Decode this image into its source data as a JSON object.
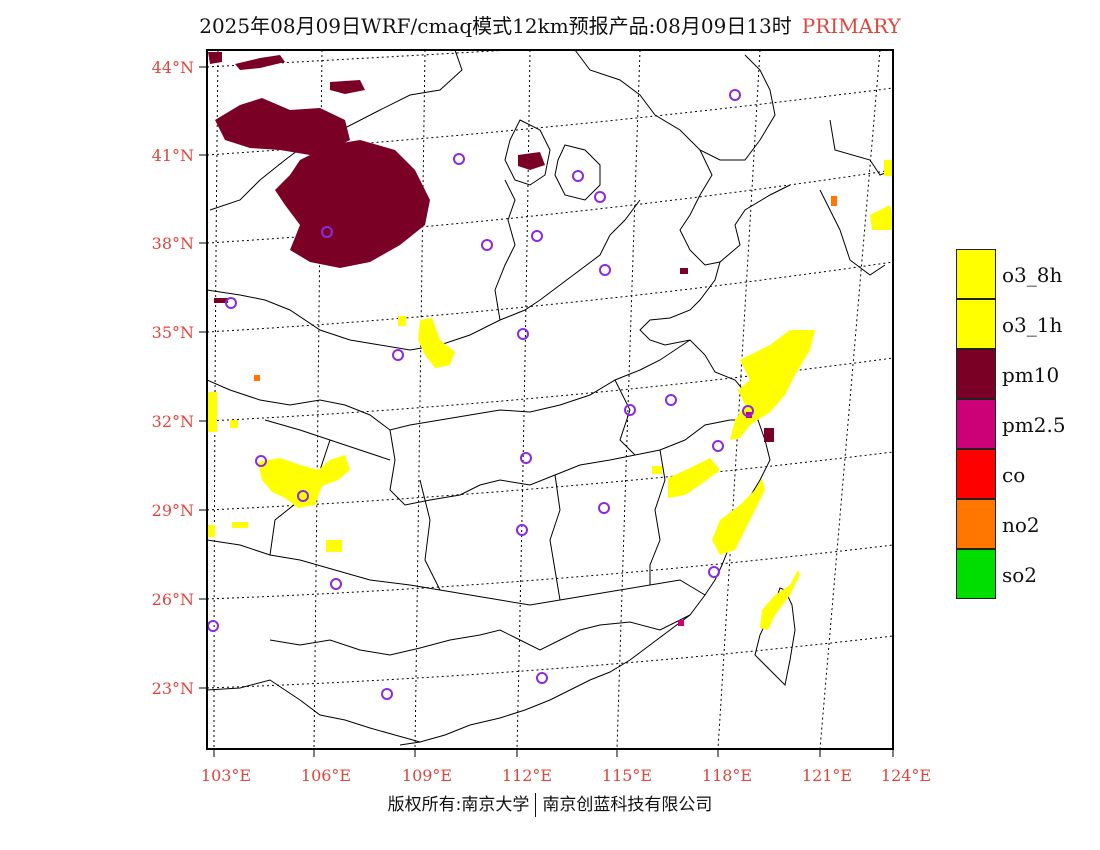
{
  "title": {
    "main": "2025年08月09日WRF/cmaq模式12km预报产品:08月09日13时",
    "tag": "PRIMARY"
  },
  "colors": {
    "axis_label": "#e0453b",
    "o3_8h": "#ffff00",
    "o3_1h": "#ffff00",
    "pm10": "#7a0026",
    "pm2_5": "#cc0077",
    "co": "#ff0000",
    "no2": "#ff7700",
    "so2": "#00dd00",
    "station": "#8a2be2"
  },
  "lat_labels": [
    "44°N",
    "41°N",
    "38°N",
    "35°N",
    "32°N",
    "29°N",
    "26°N",
    "23°N"
  ],
  "lon_labels": [
    "103°E",
    "106°E",
    "109°E",
    "112°E",
    "115°E",
    "118°E",
    "121°E",
    "124°E"
  ],
  "legend": [
    {
      "label": "o3_8h",
      "color": "#ffff00"
    },
    {
      "label": "o3_1h",
      "color": "#ffff00"
    },
    {
      "label": "pm10",
      "color": "#7a0026"
    },
    {
      "label": "pm2.5",
      "color": "#cc0077"
    },
    {
      "label": "co",
      "color": "#ff0000"
    },
    {
      "label": "no2",
      "color": "#ff7700"
    },
    {
      "label": "so2",
      "color": "#00dd00"
    }
  ],
  "footer": {
    "left": "版权所有:南京大学",
    "right": "南京创蓝科技有限公司"
  }
}
